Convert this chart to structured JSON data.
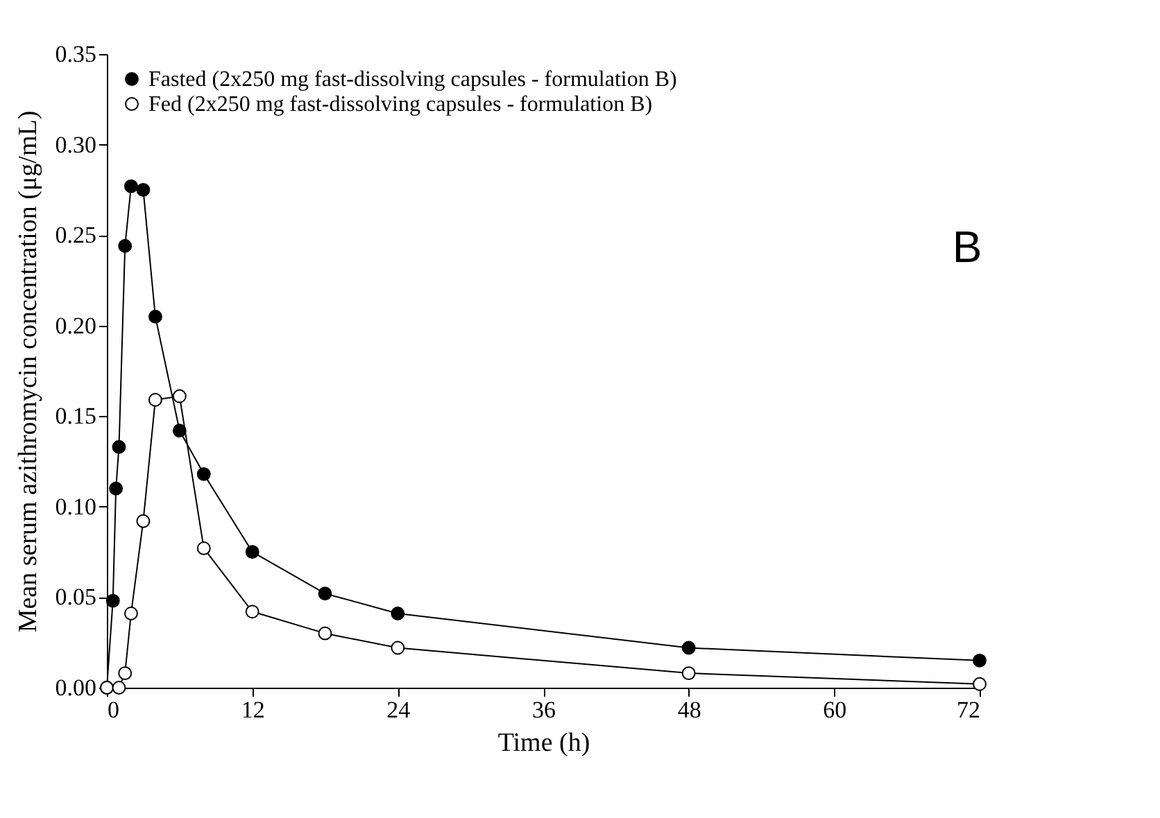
{
  "chart_data": {
    "type": "line",
    "xlabel": "Time (h)",
    "ylabel": "Mean serum azithromycin concentration (μg/mL)",
    "xlim": [
      0,
      72
    ],
    "xticks": [
      0,
      12,
      24,
      36,
      48,
      60,
      72
    ],
    "ylim": [
      0,
      0.35
    ],
    "yticks": [
      {
        "value": 0,
        "label": "0.00"
      },
      {
        "value": 0.05,
        "label": "0.05"
      },
      {
        "value": 0.1,
        "label": "0.10"
      },
      {
        "value": 0.15,
        "label": "0.15"
      },
      {
        "value": 0.2,
        "label": "0.20"
      },
      {
        "value": 0.25,
        "label": "0.25"
      },
      {
        "value": 0.3,
        "label": "0.30"
      },
      {
        "value": 0.35,
        "label": "0.35"
      }
    ],
    "grid": false,
    "legend": "top left",
    "marker": "circle",
    "line_style": "solid",
    "annotations": [
      "B"
    ],
    "series": [
      {
        "name": "Fasted (2x250 mg fast-dissolving capsules - formulation B)",
        "color": "#000000",
        "x": [
          0,
          0.5,
          0.75,
          1,
          1.5,
          2,
          3,
          4,
          6,
          8,
          12,
          18,
          24,
          48,
          72
        ],
        "values": [
          0,
          0.048,
          0.11,
          0.133,
          0.244,
          0.277,
          0.275,
          0.205,
          0.142,
          0.118,
          0.075,
          0.052,
          0.041,
          0.022,
          0.015
        ]
      },
      {
        "name": "Fed (2x250 mg fast-dissolving capsules - formulation B)",
        "color": "#ffffff",
        "x": [
          0,
          1,
          1.5,
          2,
          3,
          4,
          6,
          8,
          12,
          18,
          24,
          48,
          72
        ],
        "values": [
          0,
          0,
          0.008,
          0.041,
          0.092,
          0.159,
          0.161,
          0.077,
          0.042,
          0.03,
          0.022,
          0.008,
          0.002
        ]
      }
    ]
  }
}
